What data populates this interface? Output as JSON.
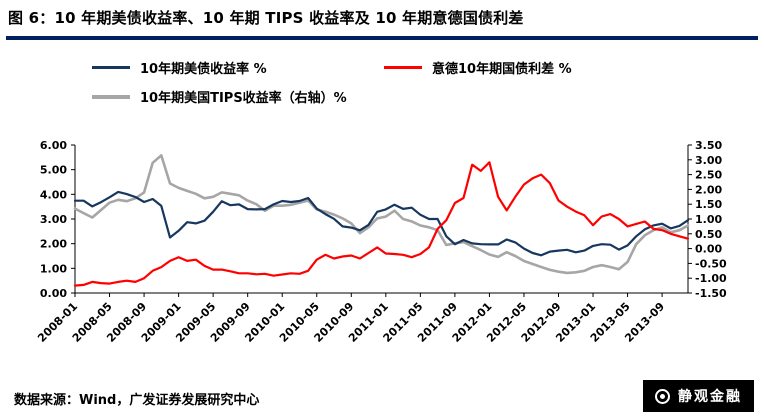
{
  "header": {
    "title": "图 6：10 年期美债收益率、10 年期 TIPS 收益率及 10 年期意德国债利差"
  },
  "footer": {
    "source": "数据来源：Wind，广发证券发展研究中心",
    "brand": "静观金融"
  },
  "colors": {
    "title_rule": "#002060",
    "treasury_line": "#17375E",
    "spread_line": "#FF0000",
    "tips_line": "#A6A6A6",
    "logo_bg": "#000000"
  },
  "chart_data": {
    "type": "line",
    "grid": false,
    "legend_position": "top",
    "x_labels_shown": [
      "2008-01",
      "2008-05",
      "2008-09",
      "2009-01",
      "2009-05",
      "2009-09",
      "2010-01",
      "2010-05",
      "2010-09",
      "2011-01",
      "2011-05",
      "2011-09",
      "2012-01",
      "2012-05",
      "2012-09",
      "2013-01",
      "2013-05",
      "2013-09"
    ],
    "x_label_step_months": 4,
    "left_axis": {
      "min": 0,
      "max": 6,
      "ticks": [
        "6.00",
        "5.00",
        "4.00",
        "3.00",
        "2.00",
        "1.00",
        "0.00"
      ]
    },
    "right_axis": {
      "min": -1.5,
      "max": 3.5,
      "ticks": [
        "3.50",
        "3.00",
        "2.50",
        "2.00",
        "1.50",
        "1.00",
        "0.50",
        "0.00",
        "-0.50",
        "-1.00",
        "-1.50"
      ]
    },
    "series": [
      {
        "name": "10年期美债收益率 %",
        "axis": "left",
        "color": "#17375E",
        "values": [
          3.74,
          3.74,
          3.51,
          3.68,
          3.88,
          4.1,
          4.01,
          3.89,
          3.69,
          3.81,
          3.53,
          2.25,
          2.52,
          2.87,
          2.82,
          2.93,
          3.29,
          3.72,
          3.56,
          3.59,
          3.4,
          3.39,
          3.4,
          3.59,
          3.73,
          3.69,
          3.73,
          3.85,
          3.42,
          3.2,
          3.01,
          2.7,
          2.65,
          2.54,
          2.76,
          3.29,
          3.39,
          3.58,
          3.41,
          3.46,
          3.17,
          3.0,
          3.0,
          2.3,
          1.98,
          2.15,
          2.01,
          1.98,
          1.97,
          1.97,
          2.17,
          2.05,
          1.8,
          1.62,
          1.53,
          1.68,
          1.72,
          1.75,
          1.65,
          1.72,
          1.91,
          1.98,
          1.96,
          1.76,
          1.93,
          2.3,
          2.58,
          2.74,
          2.81,
          2.62,
          2.72,
          2.95
        ]
      },
      {
        "name": "意德10年期国债利差 %",
        "axis": "left",
        "color": "#FF0000",
        "values": [
          0.3,
          0.33,
          0.45,
          0.4,
          0.38,
          0.45,
          0.5,
          0.45,
          0.6,
          0.9,
          1.05,
          1.3,
          1.45,
          1.3,
          1.35,
          1.1,
          0.95,
          0.95,
          0.88,
          0.8,
          0.8,
          0.76,
          0.78,
          0.7,
          0.75,
          0.8,
          0.78,
          0.9,
          1.35,
          1.55,
          1.4,
          1.48,
          1.52,
          1.4,
          1.62,
          1.85,
          1.6,
          1.58,
          1.55,
          1.45,
          1.58,
          1.85,
          2.6,
          2.95,
          3.65,
          3.85,
          5.2,
          4.95,
          5.3,
          3.9,
          3.35,
          3.9,
          4.4,
          4.65,
          4.8,
          4.45,
          3.75,
          3.5,
          3.3,
          3.15,
          2.75,
          3.1,
          3.2,
          3.0,
          2.7,
          2.8,
          2.9,
          2.6,
          2.55,
          2.4,
          2.3,
          2.2
        ]
      },
      {
        "name": "10年期美国TIPS收益率（右轴）%",
        "axis": "right",
        "color": "#A6A6A6",
        "values": [
          1.35,
          1.2,
          1.05,
          1.3,
          1.55,
          1.65,
          1.6,
          1.7,
          1.9,
          2.9,
          3.15,
          2.2,
          2.05,
          1.95,
          1.85,
          1.7,
          1.75,
          1.9,
          1.85,
          1.8,
          1.62,
          1.5,
          1.28,
          1.45,
          1.45,
          1.48,
          1.55,
          1.62,
          1.32,
          1.25,
          1.15,
          1.02,
          0.85,
          0.52,
          0.72,
          1.02,
          1.08,
          1.28,
          1.0,
          0.92,
          0.78,
          0.72,
          0.62,
          0.12,
          0.18,
          0.22,
          0.08,
          -0.05,
          -0.2,
          -0.28,
          -0.12,
          -0.25,
          -0.42,
          -0.52,
          -0.62,
          -0.72,
          -0.78,
          -0.82,
          -0.8,
          -0.75,
          -0.62,
          -0.56,
          -0.62,
          -0.7,
          -0.45,
          0.15,
          0.45,
          0.62,
          0.72,
          0.55,
          0.62,
          0.78
        ]
      }
    ]
  }
}
